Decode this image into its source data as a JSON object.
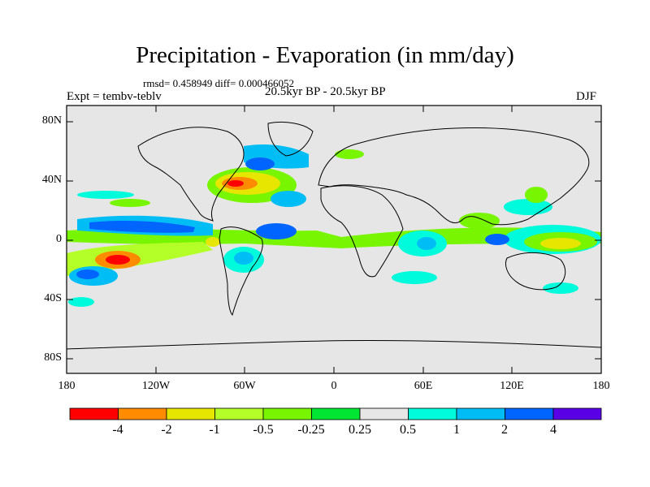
{
  "title": "Precipitation - Evaporation (in mm/day)",
  "stats": "rmsd= 0.458949 diff= 0.000466052",
  "experiment": "Expt = tembv-teblv",
  "period": "20.5kyr BP - 20.5kyr BP",
  "season": "DJF",
  "lat_labels": [
    "80N",
    "40N",
    "0",
    "40S",
    "80S"
  ],
  "lon_labels": [
    "180",
    "120W",
    "60W",
    "0",
    "60E",
    "120E",
    "180"
  ],
  "colorbar": {
    "colors": [
      "#ff0000",
      "#ff8c00",
      "#e6e600",
      "#b4ff28",
      "#78f500",
      "#00e632",
      "#e6e6e6",
      "#00fadc",
      "#00bef5",
      "#0064ff",
      "#0000e6",
      "#5a00e6"
    ],
    "labels": [
      "-4",
      "-2",
      "-1",
      "-0.5",
      "-0.25",
      "0.25",
      "0.5",
      "1",
      "2",
      "4"
    ]
  }
}
